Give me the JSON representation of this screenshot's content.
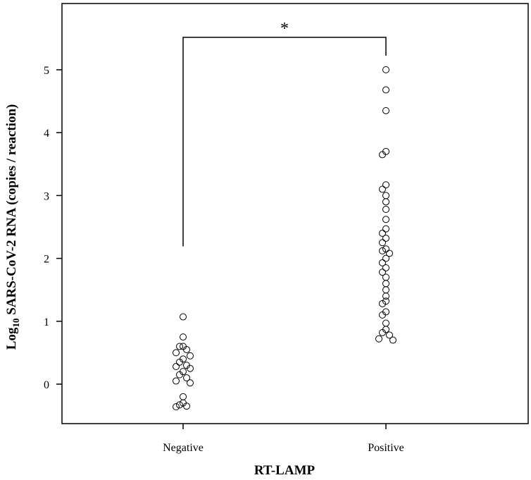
{
  "chart_data": {
    "type": "scatter",
    "xlabel": "RT-LAMP",
    "ylabel_main": "Log",
    "ylabel_sub": "10",
    "ylabel_rest": " SARS-CoV-2 RNA (copies / reaction)",
    "categories": [
      "Negative",
      "Positive"
    ],
    "ylim": [
      -0.6,
      5.8
    ],
    "yticks": [
      0,
      1,
      2,
      3,
      4,
      5
    ],
    "significance": "*",
    "grid": false,
    "series": [
      {
        "category": "Negative",
        "values": [
          1.07,
          0.75,
          0.6,
          0.6,
          0.55,
          0.5,
          0.45,
          0.4,
          0.35,
          0.3,
          0.28,
          0.25,
          0.2,
          0.15,
          0.1,
          0.05,
          0.02,
          -0.2,
          -0.3,
          -0.33,
          -0.35,
          -0.36
        ]
      },
      {
        "category": "Positive",
        "values": [
          5.0,
          4.68,
          4.35,
          3.7,
          3.65,
          3.17,
          3.1,
          3.0,
          2.9,
          2.78,
          2.62,
          2.47,
          2.4,
          2.32,
          2.25,
          2.15,
          2.12,
          2.08,
          2.0,
          1.93,
          1.85,
          1.78,
          1.7,
          1.6,
          1.5,
          1.4,
          1.32,
          1.28,
          1.15,
          1.1,
          0.97,
          0.87,
          0.82,
          0.78,
          0.72,
          0.7
        ]
      }
    ]
  }
}
